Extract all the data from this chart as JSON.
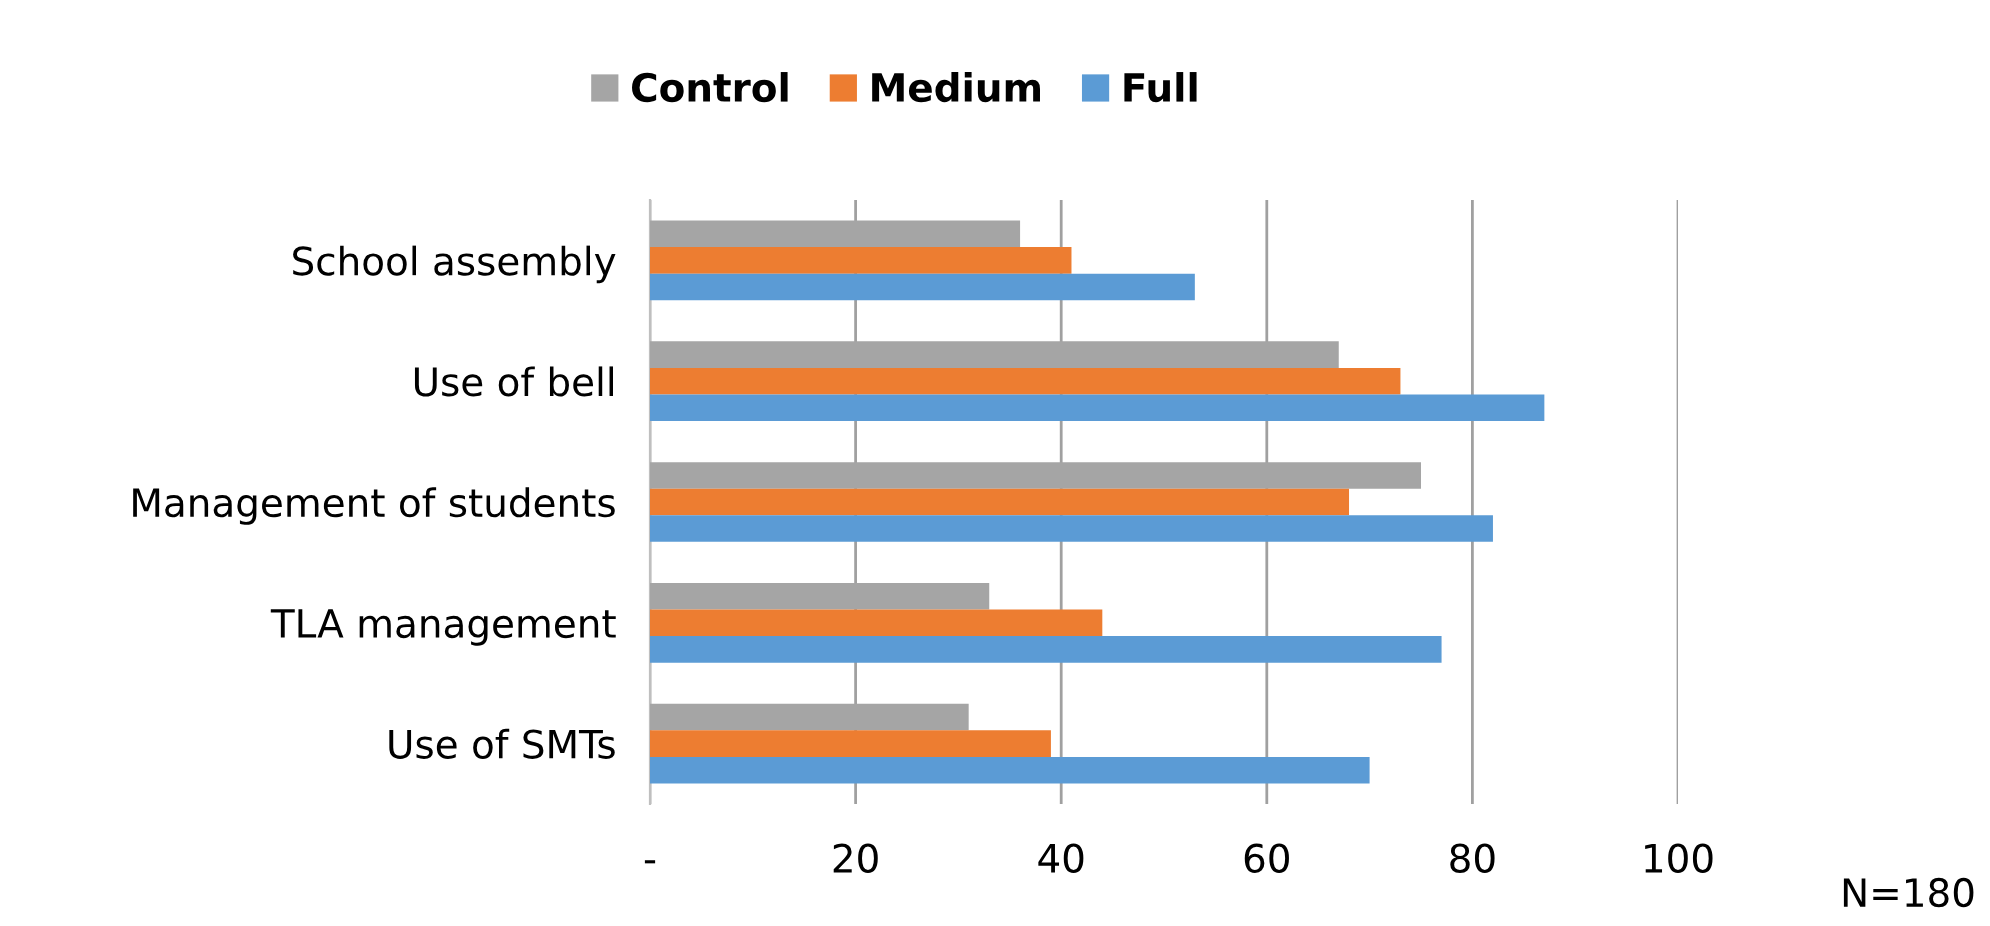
{
  "chart_data": {
    "type": "bar",
    "orientation": "horizontal",
    "categories": [
      "School assembly",
      "Use of bell",
      "Management of students",
      "TLA management",
      "Use of SMTs"
    ],
    "series": [
      {
        "name": "Control",
        "color": "#a5a5a5",
        "values": [
          36,
          67,
          75,
          33,
          31
        ]
      },
      {
        "name": "Medium",
        "color": "#ed7d31",
        "values": [
          41,
          73,
          68,
          44,
          39
        ]
      },
      {
        "name": "Full",
        "color": "#5b9bd5",
        "values": [
          53,
          87,
          82,
          77,
          70
        ]
      }
    ],
    "xlim": [
      0,
      100
    ],
    "xticks": [
      {
        "value": 0,
        "label": "-"
      },
      20,
      40,
      60,
      80,
      100
    ],
    "grid": "x",
    "legend": "top",
    "annotations": [
      "N=180"
    ]
  }
}
